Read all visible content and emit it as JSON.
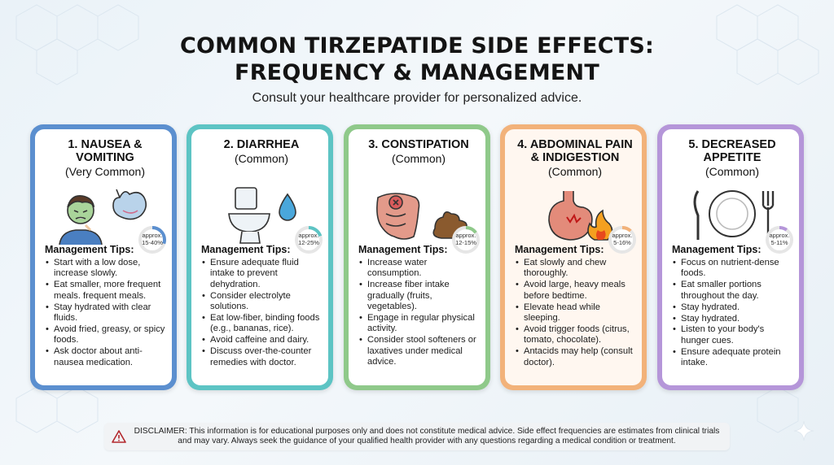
{
  "header": {
    "title_line1": "COMMON TIRZEPATIDE SIDE EFFECTS:",
    "title_line2": "FREQUENCY & MANAGEMENT",
    "subtitle": "Consult your healthcare provider for personalized advice."
  },
  "cards": [
    {
      "name": "1. NAUSEA & VOMITING",
      "frequency": "(Very Common)",
      "rate_prefix": "approx.",
      "rate": "15-40%",
      "rate_fraction": 0.3,
      "accent": "#5b8fcf",
      "tips_title": "Management Tips:",
      "tips": [
        "Start with a low dose, increase slowly.",
        "Eat smaller, more frequent meals. frequent meals.",
        "Stay hydrated with clear fluids.",
        "Avoid fried, greasy, or spicy foods.",
        "Ask doctor about anti-nausea medication."
      ]
    },
    {
      "name": "2. DIARRHEA",
      "frequency": "(Common)",
      "rate_prefix": "approx.",
      "rate": "12-25%",
      "rate_fraction": 0.2,
      "accent": "#5dc4c4",
      "tips_title": "Management Tips:",
      "tips": [
        "Ensure adequate fluid intake to prevent dehydration.",
        "Consider electrolyte solutions.",
        "Eat low-fiber, binding foods (e.g., bananas, rice).",
        "Avoid caffeine and dairy.",
        "Discuss over-the-counter remedies with doctor."
      ]
    },
    {
      "name": "3. CONSTIPATION",
      "frequency": "(Common)",
      "rate_prefix": "approx.",
      "rate": "12-15%",
      "rate_fraction": 0.15,
      "accent": "#8fc98a",
      "tips_title": "Management Tips:",
      "tips": [
        "Increase water consumption.",
        "Increase fiber intake gradually (fruits, vegetables).",
        "Engage in regular physical activity.",
        "Consider stool softeners or laxatives under medical advice."
      ]
    },
    {
      "name": "4. ABDOMINAL PAIN & INDIGESTION",
      "frequency": "(Common)",
      "rate_prefix": "approx.",
      "rate": "5-16%",
      "rate_fraction": 0.12,
      "accent": "#f2b27a",
      "tips_title": "Management Tips:",
      "tips": [
        "Eat slowly and chew thoroughly.",
        "Avoid large, heavy meals before bedtime.",
        "Elevate head while sleeping.",
        "Avoid trigger foods (citrus, tomato, chocolate).",
        "Antacids may help (consult doctor)."
      ]
    },
    {
      "name": "5. DECREASED APPETITE",
      "frequency": "(Common)",
      "rate_prefix": "approx.",
      "rate": "5-11%",
      "rate_fraction": 0.1,
      "accent": "#b596d9",
      "tips_title": "Management Tips:",
      "tips": [
        "Focus on nutrient-dense foods.",
        "Eat smaller portions throughout the day.",
        "Stay hydrated.",
        "Stay hydrated.",
        "Listen to your body's hunger cues.",
        "Ensure adequate protein intake."
      ]
    }
  ],
  "disclaimer": {
    "icon": "warning-icon",
    "text": "DISCLAIMER: This information is for educational purposes only and does not constitute medical advice. Side effect frequencies are estimates from clinical trials and may vary. Always seek the guidance of your qualified health provider with any questions regarding a medical condition or treatment."
  }
}
